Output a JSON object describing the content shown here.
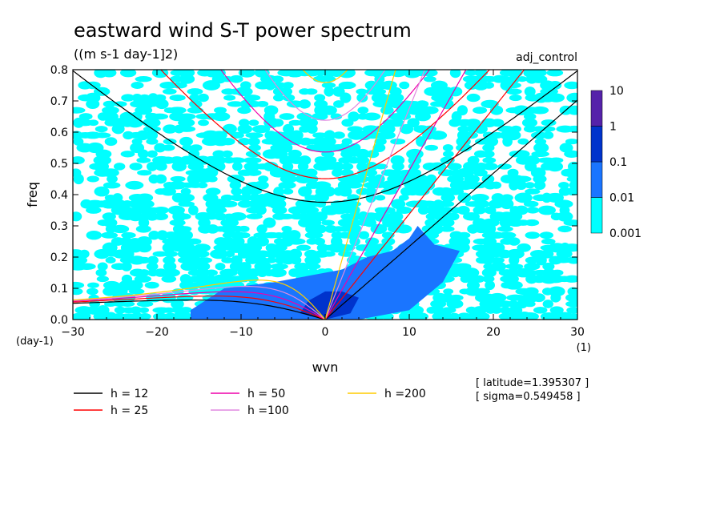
{
  "chart_data": {
    "type": "heatmap",
    "title": "eastward wind S-T power spectrum",
    "subtitle": "((m s-1 day-1]2)",
    "experiment": "adj_control",
    "xlabel": "wvn",
    "ylabel": "freq",
    "x_unit": "(1)",
    "y_unit": "(day-1)",
    "xlim": [
      -30,
      30
    ],
    "ylim": [
      0,
      0.8
    ],
    "x_ticks": [
      -30,
      -20,
      -10,
      0,
      10,
      20,
      30
    ],
    "y_ticks": [
      0.0,
      0.1,
      0.2,
      0.3,
      0.4,
      0.5,
      0.6,
      0.7,
      0.8
    ],
    "x_tick_labels": [
      "−30",
      "−20",
      "−10",
      "0",
      "10",
      "20",
      "30"
    ],
    "y_tick_labels": [
      "0.0",
      "0.1",
      "0.2",
      "0.3",
      "0.4",
      "0.5",
      "0.6",
      "0.7",
      "0.8"
    ],
    "colorbar": {
      "labels": [
        "10",
        "1",
        "0.1",
        "0.01",
        "0.001"
      ],
      "levels": [
        0.001,
        0.01,
        0.1,
        1,
        10
      ],
      "colors": [
        "#00ffff",
        "#1a75ff",
        "#0033cc",
        "#5522aa"
      ]
    },
    "power_regions": [
      {
        "level": "0.01-0.1",
        "color": "#1a75ff",
        "outline": [
          [
            -16,
            0.03
          ],
          [
            -12,
            0.1
          ],
          [
            -6,
            0.12
          ],
          [
            -2,
            0.14
          ],
          [
            2,
            0.16
          ],
          [
            5,
            0.2
          ],
          [
            8,
            0.22
          ],
          [
            10,
            0.26
          ],
          [
            11,
            0.3
          ],
          [
            13,
            0.24
          ],
          [
            16,
            0.22
          ],
          [
            14,
            0.12
          ],
          [
            10,
            0.03
          ],
          [
            4,
            0.0
          ],
          [
            0,
            0.0
          ],
          [
            -8,
            0.0
          ],
          [
            -16,
            0.0
          ]
        ]
      },
      {
        "level": "0.1-1",
        "color": "#0033cc",
        "outline": [
          [
            -3,
            0.02
          ],
          [
            -2,
            0.06
          ],
          [
            0,
            0.09
          ],
          [
            2,
            0.09
          ],
          [
            4,
            0.07
          ],
          [
            3,
            0.02
          ],
          [
            0,
            0.0
          ]
        ]
      }
    ],
    "dispersion_curves": [
      {
        "h": 12,
        "name": "h = 12",
        "color": "#000000"
      },
      {
        "h": 25,
        "name": "h = 25",
        "color": "#ff0000"
      },
      {
        "h": 50,
        "name": "h = 50",
        "color": "#ee00aa"
      },
      {
        "h": 100,
        "name": "h =100",
        "color": "#e088e0"
      },
      {
        "h": 200,
        "name": "h =200",
        "color": "#ffcc00"
      }
    ],
    "annotations": [
      "[ latitude=1.395307 ]",
      "[ sigma=0.549458 ]"
    ]
  }
}
